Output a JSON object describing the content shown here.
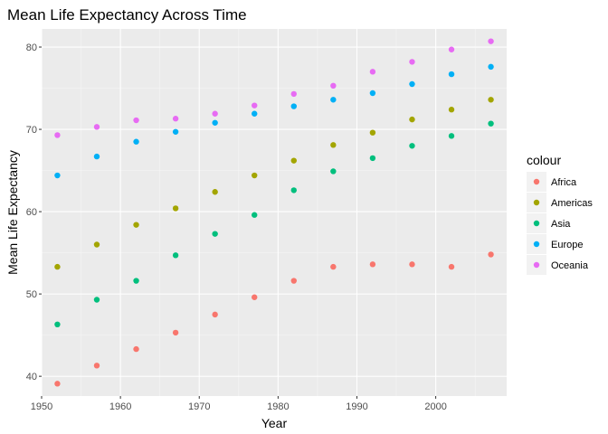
{
  "chart_data": {
    "type": "scatter",
    "title": "Mean Life Expectancy Across Time",
    "xlabel": "Year",
    "ylabel": "Mean Life Expectancy",
    "xlim": [
      1950,
      2009
    ],
    "ylim": [
      37.6,
      82.2
    ],
    "xticks": [
      1950,
      1960,
      1970,
      1980,
      1990,
      2000
    ],
    "yticks": [
      40,
      50,
      60,
      70,
      80
    ],
    "grid": true,
    "legend": {
      "title": "colour",
      "position": "right"
    },
    "x": [
      1952,
      1957,
      1962,
      1967,
      1972,
      1977,
      1982,
      1987,
      1992,
      1997,
      2002,
      2007
    ],
    "series": [
      {
        "name": "Africa",
        "color": "#F8766D",
        "values": [
          39.1,
          41.3,
          43.3,
          45.3,
          47.5,
          49.6,
          51.6,
          53.3,
          53.6,
          53.6,
          53.3,
          54.8
        ]
      },
      {
        "name": "Americas",
        "color": "#A3A500",
        "values": [
          53.3,
          56.0,
          58.4,
          60.4,
          62.4,
          64.4,
          66.2,
          68.1,
          69.6,
          71.2,
          72.4,
          73.6
        ]
      },
      {
        "name": "Asia",
        "color": "#00BF7D",
        "values": [
          46.3,
          49.3,
          51.6,
          54.7,
          57.3,
          59.6,
          62.6,
          64.9,
          66.5,
          68.0,
          69.2,
          70.7
        ]
      },
      {
        "name": "Europe",
        "color": "#00B0F6",
        "values": [
          64.4,
          66.7,
          68.5,
          69.7,
          70.8,
          71.9,
          72.8,
          73.6,
          74.4,
          75.5,
          76.7,
          77.6
        ]
      },
      {
        "name": "Oceania",
        "color": "#E76BF3",
        "values": [
          69.3,
          70.3,
          71.1,
          71.3,
          71.9,
          72.9,
          74.3,
          75.3,
          77.0,
          78.2,
          79.7,
          80.7
        ]
      }
    ]
  }
}
